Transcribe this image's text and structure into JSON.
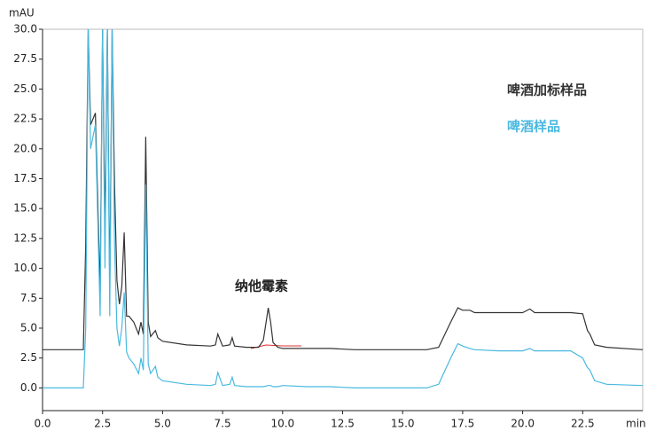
{
  "chart_data": {
    "type": "line",
    "y_label": "mAU",
    "x_label": "min",
    "annotations": {
      "peak": "纳他霉素"
    },
    "x": [
      0,
      1.7,
      1.8,
      1.9,
      2.0,
      2.2,
      2.4,
      2.5,
      2.6,
      2.7,
      2.8,
      2.9,
      3.0,
      3.1,
      3.2,
      3.3,
      3.4,
      3.5,
      3.6,
      3.8,
      4.0,
      4.1,
      4.2,
      4.3,
      4.4,
      4.5,
      4.7,
      4.8,
      5.0,
      6.0,
      7.0,
      7.2,
      7.3,
      7.5,
      7.8,
      7.9,
      8.0,
      8.5,
      9.0,
      9.2,
      9.4,
      9.5,
      9.6,
      9.8,
      10.0,
      11,
      12,
      13,
      14,
      15,
      16,
      16.5,
      17.0,
      17.3,
      17.5,
      17.8,
      18,
      19,
      20,
      20.3,
      20.5,
      21,
      22,
      22.5,
      22.7,
      22.8,
      23,
      23.5,
      25
    ],
    "series": [
      {
        "name": "啤酒加标样品",
        "color": "#333333",
        "values": [
          3.2,
          3.2,
          12,
          30,
          22,
          23,
          8,
          30,
          13,
          30,
          8,
          30,
          17,
          9,
          7,
          8.5,
          13,
          6,
          6,
          5.5,
          4.5,
          5.5,
          4.5,
          21,
          5.5,
          4.3,
          4.8,
          4.2,
          3.9,
          3.6,
          3.5,
          3.6,
          4.5,
          3.5,
          3.6,
          4.2,
          3.5,
          3.4,
          3.4,
          4.0,
          6.7,
          5.5,
          3.8,
          3.4,
          3.3,
          3.3,
          3.3,
          3.2,
          3.2,
          3.2,
          3.2,
          3.4,
          5.5,
          6.7,
          6.5,
          6.5,
          6.3,
          6.3,
          6.3,
          6.6,
          6.3,
          6.3,
          6.3,
          6.2,
          4.8,
          4.5,
          3.6,
          3.4,
          3.2
        ]
      },
      {
        "name": "啤酒样品",
        "color": "#4ab9e0",
        "values": [
          0,
          0,
          5,
          30,
          20,
          22,
          6,
          30,
          10,
          30,
          6,
          30,
          12,
          5,
          3.5,
          5,
          8,
          3,
          2.5,
          2,
          1.2,
          2.5,
          1.5,
          17,
          2,
          1.2,
          1.8,
          0.9,
          0.6,
          0.3,
          0.2,
          0.3,
          1.3,
          0.2,
          0.3,
          0.9,
          0.2,
          0.1,
          0.1,
          0.1,
          0.2,
          0.2,
          0.1,
          0.1,
          0.2,
          0.1,
          0.1,
          0,
          0,
          0,
          0,
          0.3,
          2.5,
          3.7,
          3.5,
          3.3,
          3.2,
          3.1,
          3.1,
          3.3,
          3.1,
          3.1,
          3.1,
          2.5,
          1.7,
          1.5,
          0.6,
          0.3,
          0.2
        ]
      }
    ],
    "xlim": [
      0,
      25
    ],
    "xticks": [
      {
        "value": 0,
        "label": "0.0"
      },
      2.5,
      {
        "value": 5,
        "label": "5.0"
      },
      7.5,
      {
        "value": 10,
        "label": "10.0"
      },
      12.5,
      {
        "value": 15,
        "label": "15.0"
      },
      17.5,
      {
        "value": 20,
        "label": "20.0"
      },
      22.5
    ],
    "ylim": [
      -1.9,
      30
    ],
    "yticks": [
      {
        "value": 0,
        "label": "0.0"
      },
      2.5,
      {
        "value": 5,
        "label": "5.0"
      },
      7.5,
      {
        "value": 10,
        "label": "10.0"
      },
      12.5,
      {
        "value": 15,
        "label": "15.0"
      },
      17.5,
      {
        "value": 20,
        "label": "20.0"
      },
      22.5,
      {
        "value": 25,
        "label": "25.0"
      },
      27.5,
      {
        "value": 30,
        "label": "30.0"
      }
    ]
  }
}
